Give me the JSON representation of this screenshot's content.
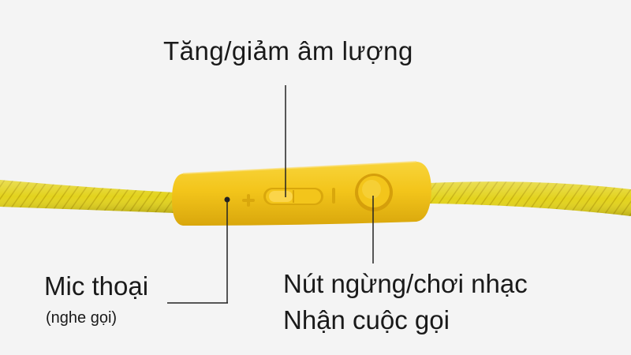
{
  "annotations": {
    "volume": "Tăng/giảm âm lượng",
    "mic_title": "Mic thoại",
    "mic_sub": "(nghe gọi)",
    "play_line1": "Nút ngừng/chơi nhạc",
    "play_line2": "Nhận cuộc gọi"
  },
  "remote": {
    "plus_symbol": "+",
    "minus_symbol": "|"
  },
  "colors": {
    "background": "#f4f4f4",
    "remote_body": "#f2c318",
    "cable": "#e6d21c",
    "leader_line": "#222222",
    "text": "#1a1a1a"
  }
}
